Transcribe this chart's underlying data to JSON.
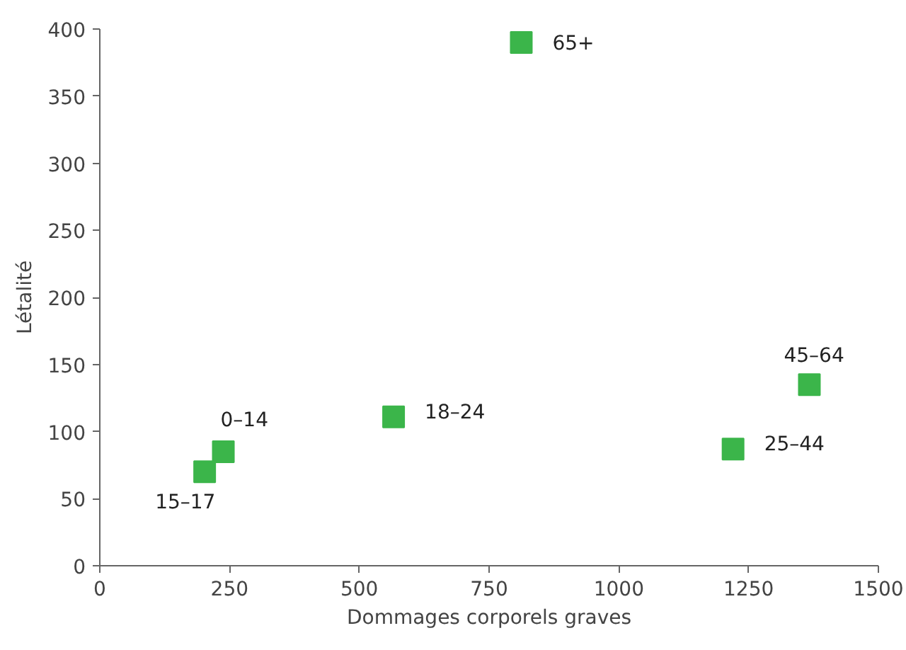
{
  "chart_data": {
    "type": "scatter",
    "xlabel": "Dommages corporels graves",
    "ylabel": "Létalité",
    "x": [
      812,
      1367,
      1220,
      566,
      238,
      202
    ],
    "series": [
      {
        "color": "#3bb54a",
        "values": [
          390,
          135,
          87,
          111,
          85,
          70
        ]
      }
    ],
    "marker": "square",
    "grid": false,
    "xlim": [
      0,
      1500
    ],
    "xticks": [
      0,
      250,
      500,
      750,
      1000,
      1250,
      1500
    ],
    "ylim": [
      0,
      400
    ],
    "yticks": [
      0,
      50,
      100,
      150,
      200,
      250,
      300,
      350,
      400
    ],
    "annotations": [
      {
        "text": "65+",
        "x": 812,
        "y": 390
      },
      {
        "text": "45–64",
        "x": 1367,
        "y": 135
      },
      {
        "text": "25–44",
        "x": 1220,
        "y": 87
      },
      {
        "text": "18–24",
        "x": 566,
        "y": 111
      },
      {
        "text": "0–14",
        "x": 238,
        "y": 85
      },
      {
        "text": "15–17",
        "x": 202,
        "y": 70
      }
    ]
  }
}
